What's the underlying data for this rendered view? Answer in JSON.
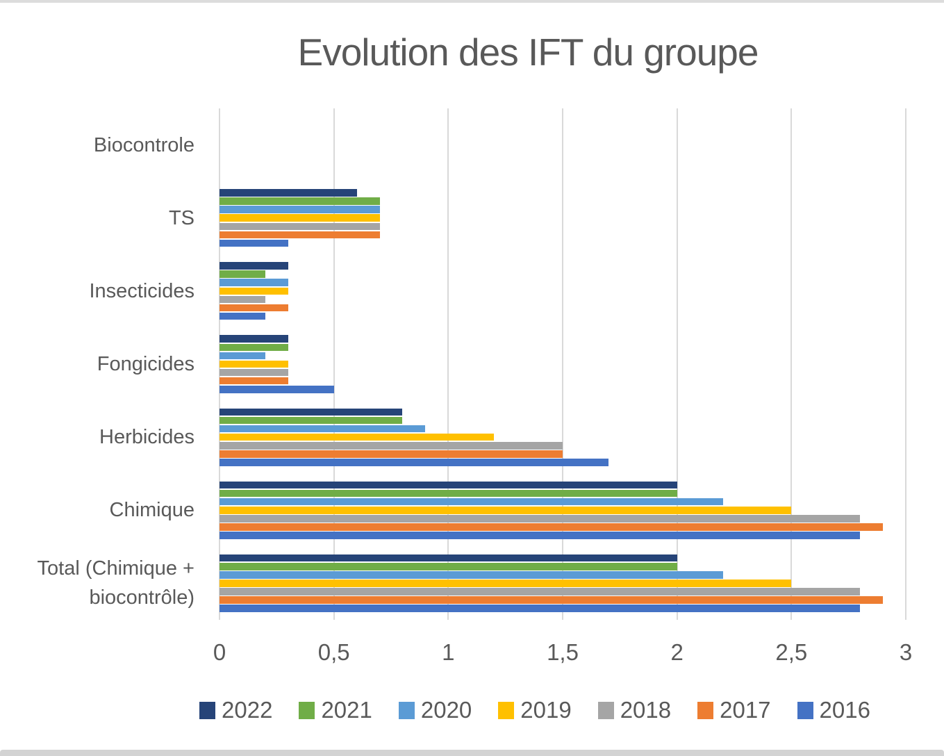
{
  "window": {
    "top_edge_color": "#dcdcdc",
    "bottom_edge_color": "#d3d3d3",
    "background_color": "#ffffff"
  },
  "chart_data": {
    "type": "bar",
    "orientation": "horizontal",
    "title": "Evolution des IFT du groupe",
    "title_color": "#595959",
    "text_color": "#595959",
    "gridline_color": "#d9d9d9",
    "grid": "vertical-major-only",
    "legend_position": "bottom",
    "categories": [
      "Biocontrole",
      "TS",
      "Insecticides",
      "Fongicides",
      "Herbicides",
      "Chimique",
      "Total (Chimique + biocontrôle)"
    ],
    "series": [
      {
        "name": "2022",
        "color": "#264478",
        "values": [
          0,
          0.6,
          0.3,
          0.3,
          0.8,
          2.0,
          2.0
        ]
      },
      {
        "name": "2021",
        "color": "#70AD47",
        "values": [
          0,
          0.7,
          0.2,
          0.3,
          0.8,
          2.0,
          2.0
        ]
      },
      {
        "name": "2020",
        "color": "#5B9BD5",
        "values": [
          0,
          0.7,
          0.3,
          0.2,
          0.9,
          2.2,
          2.2
        ]
      },
      {
        "name": "2019",
        "color": "#FFC000",
        "values": [
          0,
          0.7,
          0.3,
          0.3,
          1.2,
          2.5,
          2.5
        ]
      },
      {
        "name": "2018",
        "color": "#A5A5A5",
        "values": [
          0,
          0.7,
          0.2,
          0.3,
          1.5,
          2.8,
          2.8
        ]
      },
      {
        "name": "2017",
        "color": "#ED7D31",
        "values": [
          0,
          0.7,
          0.3,
          0.3,
          1.5,
          2.9,
          2.9
        ]
      },
      {
        "name": "2016",
        "color": "#4472C4",
        "values": [
          0,
          0.3,
          0.2,
          0.5,
          1.7,
          2.8,
          2.8
        ]
      }
    ],
    "x_axis": {
      "min": 0,
      "max": 3,
      "tick_values": [
        0,
        0.5,
        1,
        1.5,
        2,
        2.5,
        3
      ],
      "tick_labels": [
        "0",
        "0,5",
        "1",
        "1,5",
        "2",
        "2,5",
        "3"
      ]
    }
  }
}
